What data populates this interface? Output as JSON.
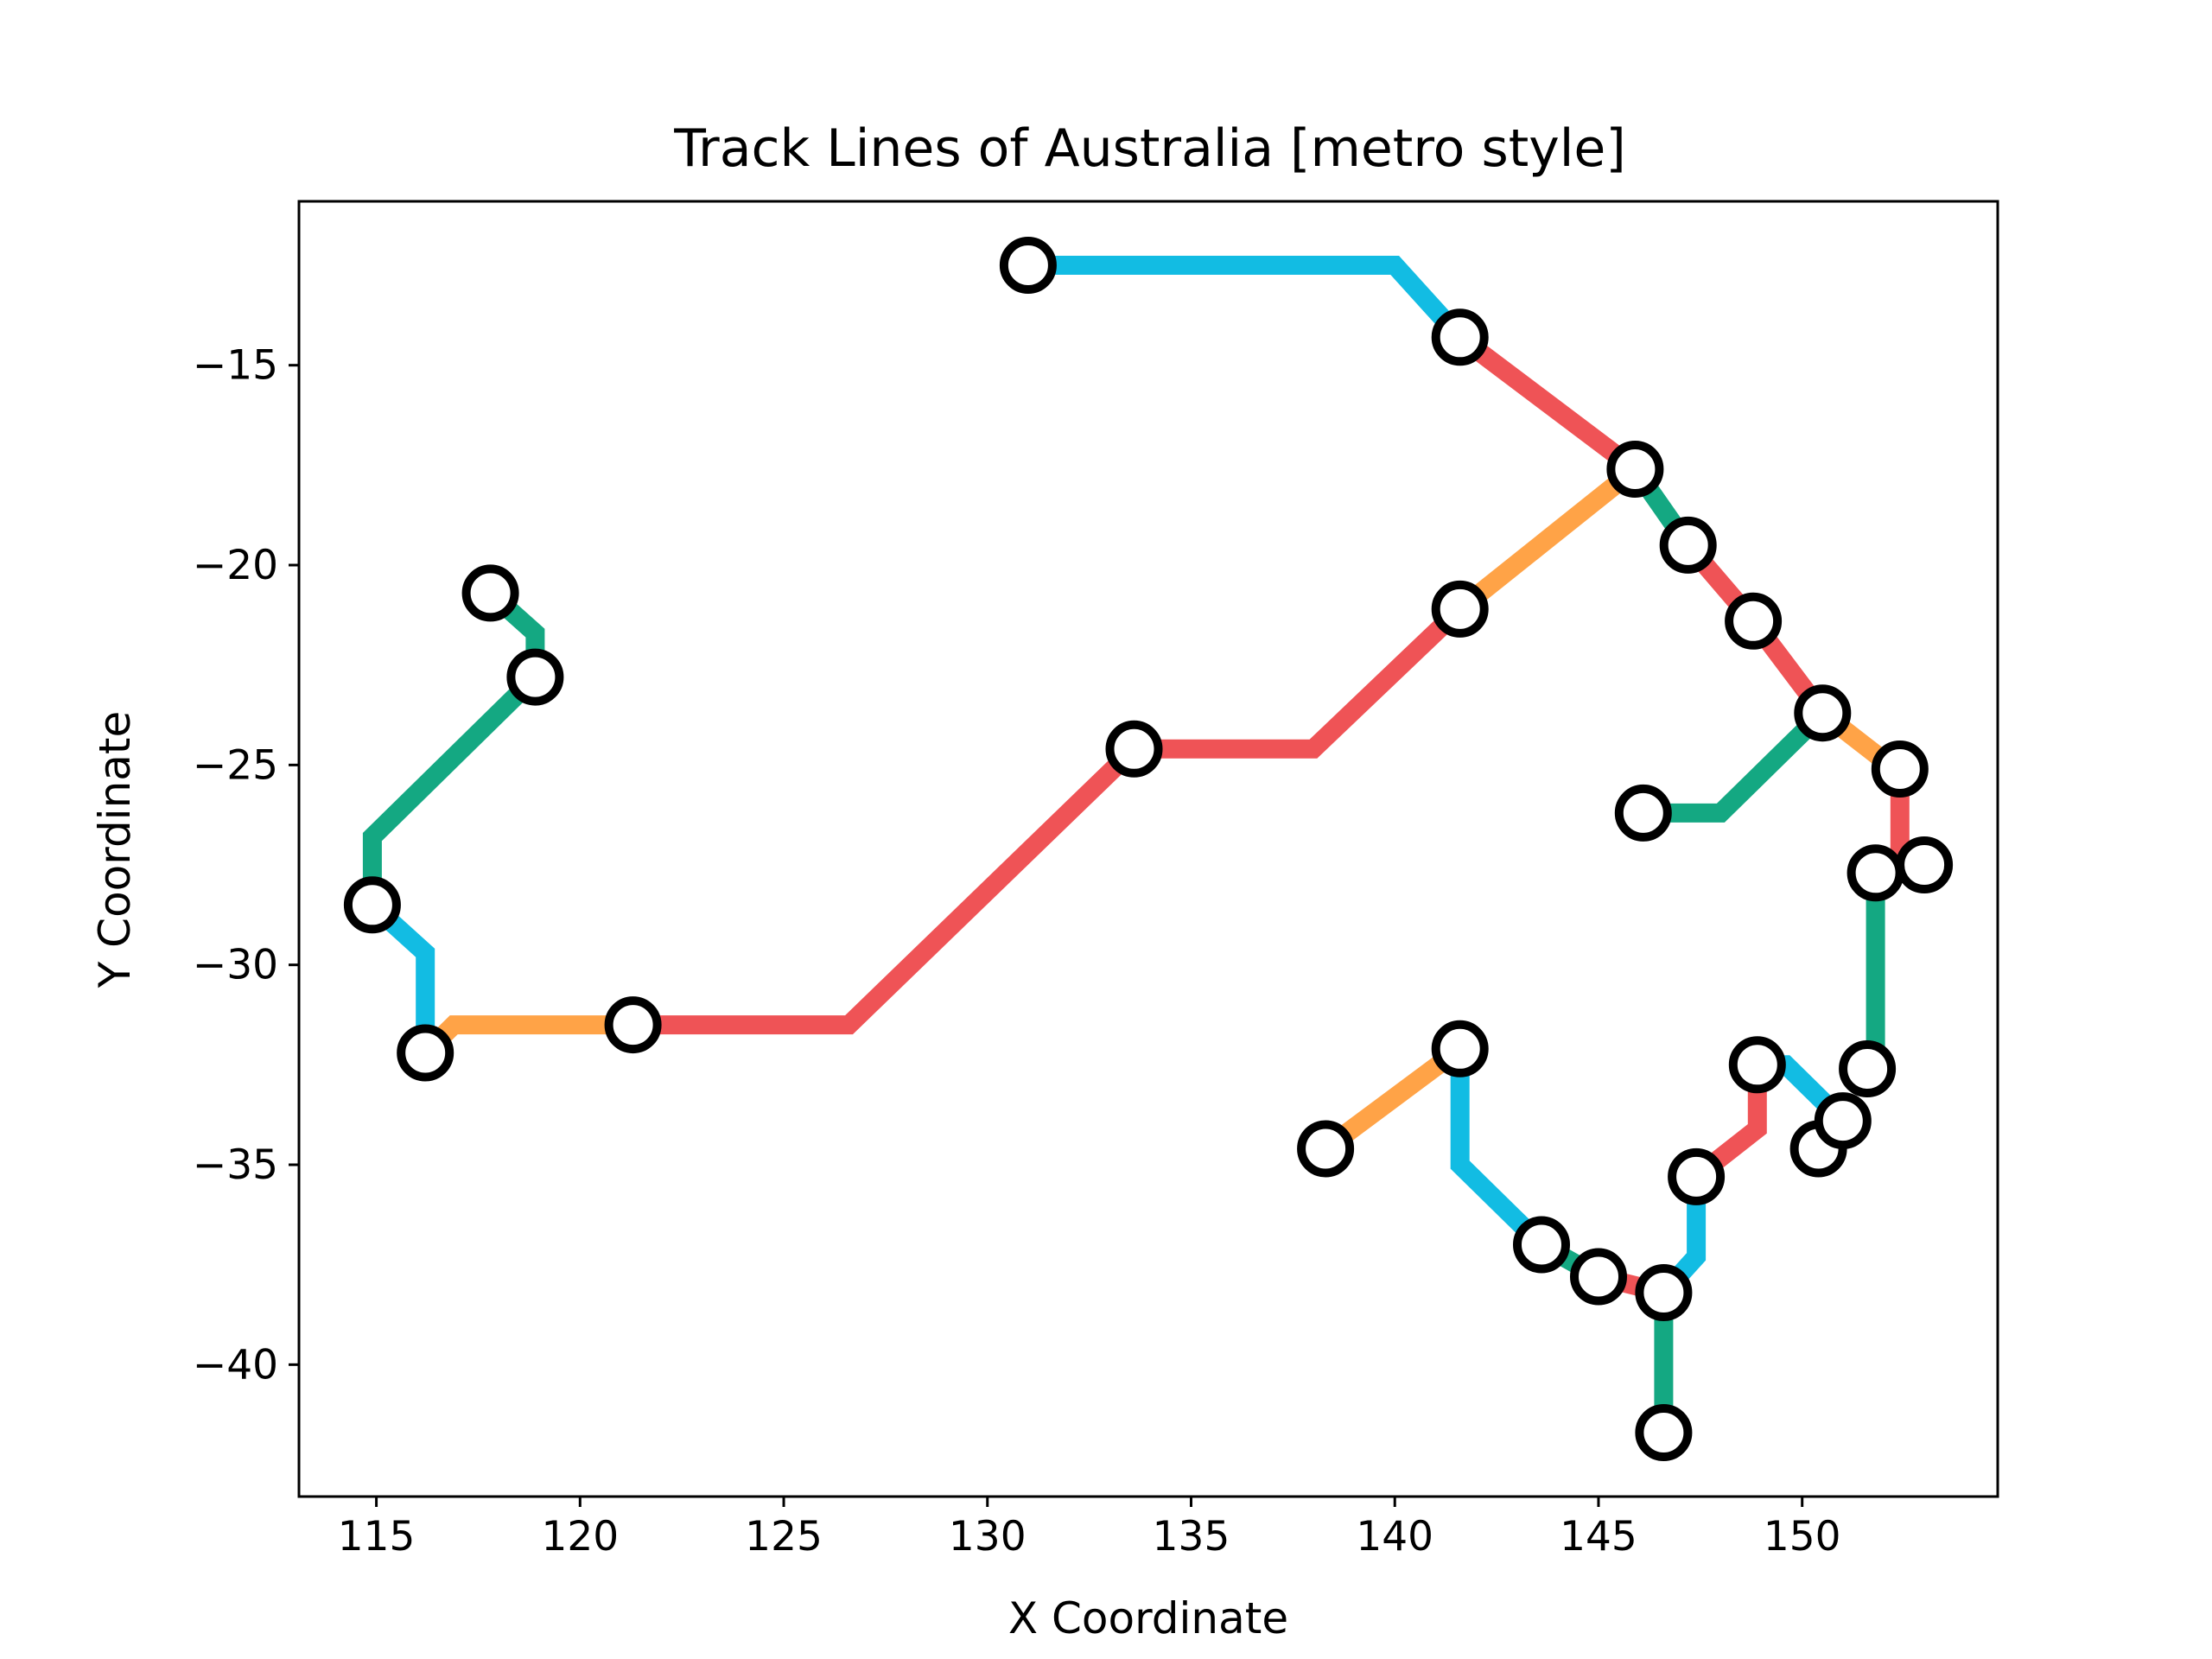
{
  "chart_data": {
    "type": "line",
    "title": "Track Lines of Australia [metro style]",
    "xlabel": "X Coordinate",
    "ylabel": "Y Coordinate",
    "xlim": [
      113.1,
      154.8
    ],
    "ylim": [
      -43.3,
      -10.9
    ],
    "xticks": [
      115,
      120,
      125,
      130,
      135,
      140,
      145,
      150
    ],
    "yticks": [
      -15,
      -20,
      -25,
      -30,
      -35,
      -40
    ],
    "grid": false,
    "colors": {
      "red": "#ef5356",
      "blue": "#12bce3",
      "green": "#14a882",
      "orange": "#ffa347"
    },
    "series": [
      {
        "color": "blue",
        "points": [
          [
            131.0,
            -12.5
          ],
          [
            140.0,
            -12.5
          ],
          [
            141.6,
            -14.3
          ]
        ]
      },
      {
        "color": "red",
        "points": [
          [
            141.6,
            -14.3
          ],
          [
            145.9,
            -17.6
          ]
        ]
      },
      {
        "color": "green",
        "points": [
          [
            145.9,
            -17.6
          ],
          [
            147.2,
            -19.5
          ]
        ]
      },
      {
        "color": "red",
        "points": [
          [
            147.2,
            -19.5
          ],
          [
            148.8,
            -21.4
          ],
          [
            150.5,
            -23.7
          ]
        ]
      },
      {
        "color": "orange",
        "points": [
          [
            150.5,
            -23.7
          ],
          [
            152.4,
            -25.2
          ]
        ]
      },
      {
        "color": "red",
        "points": [
          [
            152.4,
            -25.2
          ],
          [
            152.4,
            -27.8
          ]
        ]
      },
      {
        "color": "green",
        "points": [
          [
            150.5,
            -23.7
          ],
          [
            148.0,
            -26.2
          ],
          [
            146.1,
            -26.2
          ]
        ]
      },
      {
        "color": "orange",
        "points": [
          [
            145.9,
            -17.6
          ],
          [
            141.6,
            -21.1
          ]
        ]
      },
      {
        "color": "red",
        "points": [
          [
            141.6,
            -21.1
          ],
          [
            138.0,
            -24.6
          ],
          [
            133.6,
            -24.6
          ],
          [
            126.6,
            -31.5
          ],
          [
            121.3,
            -31.5
          ]
        ]
      },
      {
        "color": "orange",
        "points": [
          [
            121.3,
            -31.5
          ],
          [
            116.9,
            -31.5
          ],
          [
            116.2,
            -32.2
          ]
        ]
      },
      {
        "color": "blue",
        "points": [
          [
            116.2,
            -32.2
          ],
          [
            116.2,
            -29.7
          ],
          [
            114.9,
            -28.5
          ]
        ]
      },
      {
        "color": "green",
        "points": [
          [
            114.9,
            -28.5
          ],
          [
            114.9,
            -26.8
          ],
          [
            118.9,
            -22.8
          ],
          [
            118.9,
            -21.7
          ],
          [
            117.8,
            -20.7
          ]
        ]
      },
      {
        "color": "green",
        "points": [
          [
            151.8,
            -27.8
          ],
          [
            151.8,
            -32.5
          ],
          [
            151.2,
            -32.6
          ]
        ]
      },
      {
        "color": "blue",
        "points": [
          [
            148.9,
            -32.5
          ],
          [
            149.6,
            -32.5
          ],
          [
            151.0,
            -33.9
          ]
        ]
      },
      {
        "color": "red",
        "points": [
          [
            148.9,
            -32.5
          ],
          [
            148.9,
            -34.1
          ],
          [
            147.4,
            -35.3
          ]
        ]
      },
      {
        "color": "blue",
        "points": [
          [
            147.4,
            -35.3
          ],
          [
            147.4,
            -37.3
          ],
          [
            146.6,
            -38.2
          ]
        ]
      },
      {
        "color": "green",
        "points": [
          [
            146.6,
            -38.2
          ],
          [
            146.6,
            -41.7
          ]
        ]
      },
      {
        "color": "red",
        "points": [
          [
            146.6,
            -38.2
          ],
          [
            145.0,
            -37.8
          ]
        ]
      },
      {
        "color": "green",
        "points": [
          [
            145.0,
            -37.8
          ],
          [
            143.6,
            -37.0
          ]
        ]
      },
      {
        "color": "blue",
        "points": [
          [
            143.6,
            -37.0
          ],
          [
            141.6,
            -35.0
          ],
          [
            141.6,
            -32.1
          ]
        ]
      },
      {
        "color": "orange",
        "points": [
          [
            141.6,
            -32.1
          ],
          [
            138.3,
            -34.6
          ]
        ]
      }
    ],
    "stations": [
      [
        131.0,
        -12.5
      ],
      [
        141.6,
        -14.3
      ],
      [
        145.9,
        -17.6
      ],
      [
        147.2,
        -19.5
      ],
      [
        148.8,
        -21.4
      ],
      [
        150.5,
        -23.7
      ],
      [
        152.4,
        -25.1
      ],
      [
        146.1,
        -26.2
      ],
      [
        151.8,
        -27.7
      ],
      [
        153.0,
        -27.5
      ],
      [
        141.6,
        -21.1
      ],
      [
        133.6,
        -24.6
      ],
      [
        121.3,
        -31.5
      ],
      [
        116.2,
        -32.2
      ],
      [
        114.9,
        -28.5
      ],
      [
        118.9,
        -22.8
      ],
      [
        117.8,
        -20.7
      ],
      [
        151.6,
        -32.6
      ],
      [
        148.9,
        -32.5
      ],
      [
        150.4,
        -34.6
      ],
      [
        151.0,
        -33.9
      ],
      [
        147.4,
        -35.3
      ],
      [
        146.6,
        -38.2
      ],
      [
        146.6,
        -41.7
      ],
      [
        145.0,
        -37.8
      ],
      [
        143.6,
        -37.0
      ],
      [
        141.6,
        -32.1
      ],
      [
        138.3,
        -34.6
      ]
    ]
  }
}
